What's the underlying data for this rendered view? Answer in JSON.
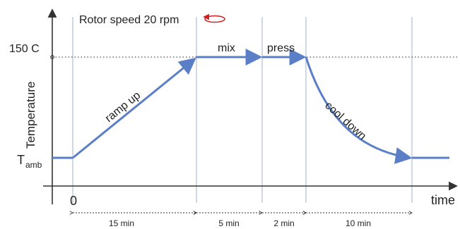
{
  "labels": {
    "title": "Rotor speed 20 rpm",
    "top_temp": "150 C",
    "temperature_axis": "Temperature",
    "ambient_main": "T",
    "ambient_sub": "amb",
    "origin": "0",
    "time_axis": "time"
  },
  "phases": {
    "ramp": "ramp up",
    "mix": "mix",
    "press": "press",
    "cool": "cool down"
  },
  "durations": {
    "ramp": "15 min",
    "mix": "5 min",
    "press": "2 min",
    "cool": "10 min"
  },
  "colors": {
    "curve": "#5b7fc6",
    "rotation_arrow": "#d11f1f",
    "gridline": "#afc0d6",
    "axis": "#333333"
  },
  "icons": {
    "rotation": "rotation-arrow-icon"
  }
}
